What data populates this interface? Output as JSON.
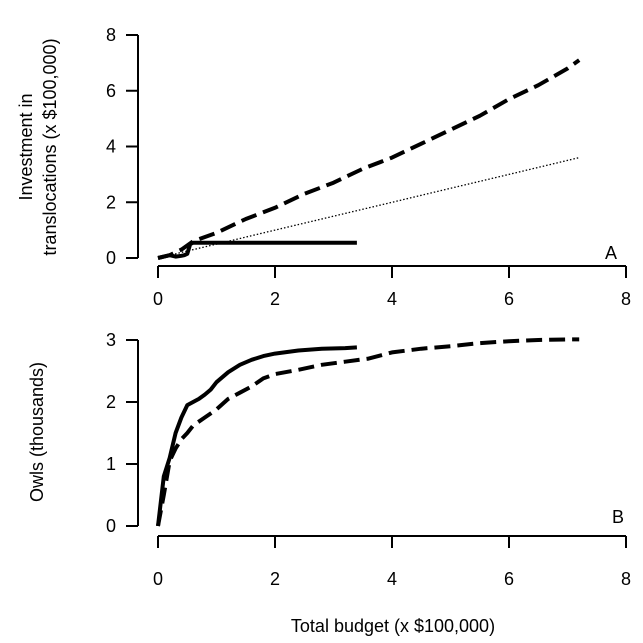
{
  "figure": {
    "xlabel": "Total budget (x $100,000)"
  },
  "chart_data": [
    {
      "type": "line",
      "panel_label": "A",
      "ylabel": [
        "Investment in",
        "translocations (x $100,000)"
      ],
      "xlim": [
        0,
        8
      ],
      "ylim": [
        0,
        8
      ],
      "xticks": [
        "0",
        "2",
        "4",
        "6",
        "8"
      ],
      "yticks": [
        "0",
        "2",
        "4",
        "6",
        "8"
      ],
      "grid": false,
      "colors": {
        "line": "#000000"
      },
      "series": [
        {
          "style": "solid",
          "x": [
            0,
            0.1,
            0.2,
            0.3,
            0.4,
            0.45,
            0.5,
            0.55,
            0.6,
            1.0,
            2.0,
            3.0,
            3.4
          ],
          "y": [
            0,
            0.05,
            0.1,
            0.05,
            0.08,
            0.1,
            0.15,
            0.5,
            0.55,
            0.55,
            0.55,
            0.55,
            0.55
          ]
        },
        {
          "style": "dashed",
          "x": [
            0,
            0.2,
            0.4,
            0.6,
            1,
            1.5,
            2,
            2.5,
            3,
            3.5,
            4,
            4.5,
            5,
            5.5,
            6,
            6.5,
            7,
            7.2
          ],
          "y": [
            0,
            0.1,
            0.3,
            0.6,
            0.9,
            1.4,
            1.8,
            2.3,
            2.7,
            3.2,
            3.6,
            4.1,
            4.6,
            5.1,
            5.7,
            6.2,
            6.8,
            7.1
          ]
        },
        {
          "style": "dotted",
          "x": [
            0,
            1,
            2,
            3,
            4,
            5,
            6,
            7,
            7.2
          ],
          "y": [
            0,
            0.5,
            1.0,
            1.5,
            2.0,
            2.5,
            3.0,
            3.5,
            3.6
          ]
        }
      ]
    },
    {
      "type": "line",
      "panel_label": "B",
      "ylabel": [
        "Owls (thousands)"
      ],
      "xlim": [
        0,
        8
      ],
      "ylim": [
        0,
        3
      ],
      "xticks": [
        "0",
        "2",
        "4",
        "6",
        "8"
      ],
      "yticks": [
        "0",
        "1",
        "2",
        "3"
      ],
      "grid": false,
      "colors": {
        "line": "#000000"
      },
      "series": [
        {
          "style": "solid",
          "x": [
            0,
            0.1,
            0.2,
            0.3,
            0.4,
            0.5,
            0.6,
            0.7,
            0.8,
            0.9,
            1.0,
            1.2,
            1.4,
            1.6,
            1.8,
            2.0,
            2.4,
            2.8,
            3.2,
            3.4
          ],
          "y": [
            0,
            0.8,
            1.1,
            1.5,
            1.75,
            1.95,
            2.0,
            2.05,
            2.12,
            2.2,
            2.32,
            2.48,
            2.6,
            2.68,
            2.74,
            2.78,
            2.83,
            2.86,
            2.87,
            2.88
          ]
        },
        {
          "style": "dashed",
          "x": [
            0,
            0.1,
            0.2,
            0.3,
            0.4,
            0.5,
            0.6,
            0.8,
            1.0,
            1.2,
            1.4,
            1.6,
            1.8,
            2.0,
            2.4,
            2.8,
            3.2,
            3.6,
            4.0,
            4.5,
            5.0,
            5.5,
            6.0,
            6.5,
            7.0,
            7.2
          ],
          "y": [
            0,
            0.5,
            1.05,
            1.25,
            1.4,
            1.5,
            1.62,
            1.75,
            1.88,
            2.05,
            2.15,
            2.25,
            2.38,
            2.45,
            2.52,
            2.6,
            2.65,
            2.7,
            2.8,
            2.86,
            2.9,
            2.95,
            2.98,
            3.0,
            3.01,
            3.01
          ]
        }
      ]
    }
  ]
}
